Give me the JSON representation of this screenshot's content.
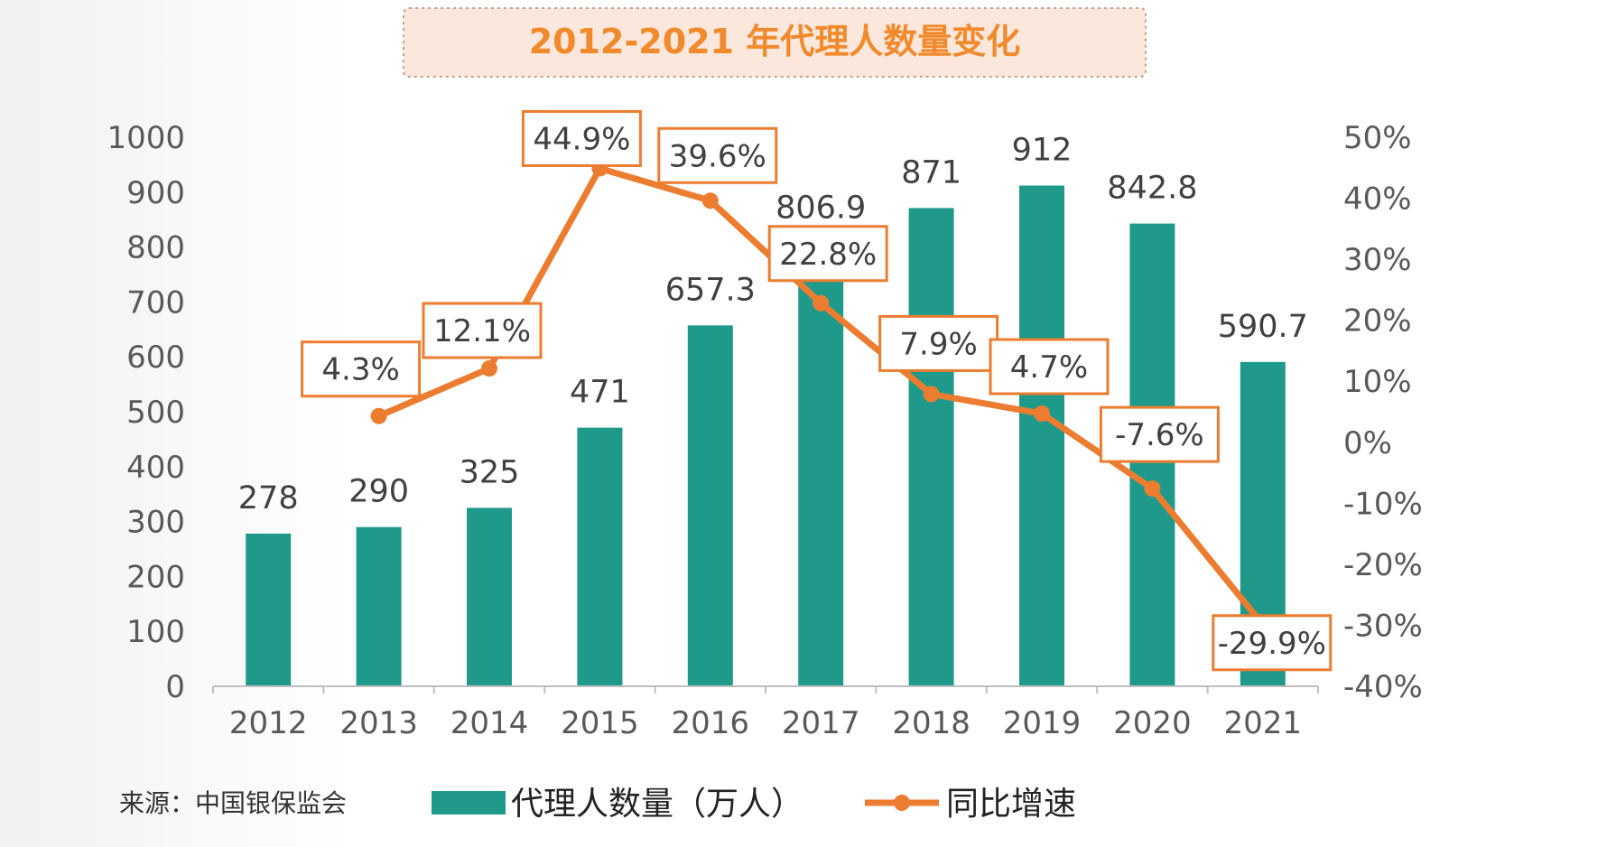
{
  "colors": {
    "bar": "#1f9a8a",
    "line": "#ec7c30",
    "title": "#f08a2c",
    "axis": "#bfbfbf"
  },
  "source": "来源：中国银保监会",
  "chart_data": {
    "type": "bar",
    "title": "2012-2021 年代理人数量变化",
    "categories": [
      "2012",
      "2013",
      "2014",
      "2015",
      "2016",
      "2017",
      "2018",
      "2019",
      "2020",
      "2021"
    ],
    "series": [
      {
        "name": "代理人数量（万人）",
        "type": "bar",
        "axis": "left",
        "values": [
          278,
          290,
          325,
          471,
          657.3,
          806.9,
          871,
          912,
          842.8,
          590.7
        ],
        "labels": [
          "278",
          "290",
          "325",
          "471",
          "657.3",
          "806.9",
          "871",
          "912",
          "842.8",
          "590.7"
        ]
      },
      {
        "name": "同比增速",
        "type": "line",
        "axis": "right",
        "values": [
          null,
          4.3,
          12.1,
          44.9,
          39.6,
          22.8,
          7.9,
          4.7,
          -7.6,
          -29.9
        ],
        "labels": [
          "",
          "4.3%",
          "12.1%",
          "44.9%",
          "39.6%",
          "22.8%",
          "7.9%",
          "4.7%",
          "-7.6%",
          "-29.9%"
        ]
      }
    ],
    "ylim": [
      0,
      1000
    ],
    "y2lim": [
      -40,
      50
    ],
    "yticks": [
      "0",
      "100",
      "200",
      "300",
      "400",
      "500",
      "600",
      "700",
      "800",
      "900",
      "1000"
    ],
    "y2ticks": [
      "-40%",
      "-30%",
      "-20%",
      "-10%",
      "0%",
      "10%",
      "20%",
      "30%",
      "40%",
      "50%"
    ],
    "grid": false,
    "legend": "bottom"
  }
}
